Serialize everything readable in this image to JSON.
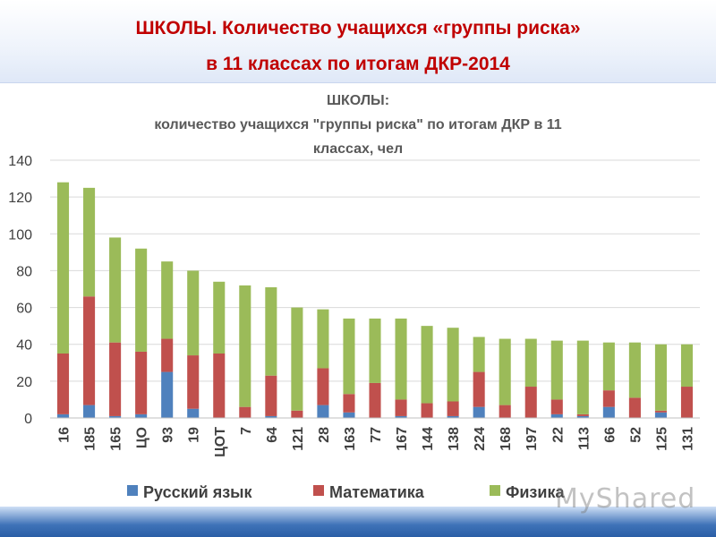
{
  "header": {
    "line1": "ШКОЛЫ. Количество учащихся «группы риска»",
    "line2": "в 11 классах по итогам ДКР-2014"
  },
  "watermark": "MyShared",
  "chart_data": {
    "type": "bar",
    "stacked": true,
    "title_lines": [
      "ШКОЛЫ:",
      "количество учащихся \"группы риска\" по итогам ДКР в 11",
      "классах, чел"
    ],
    "ylim": [
      0,
      140
    ],
    "yticks": [
      0,
      20,
      40,
      60,
      80,
      100,
      120,
      140
    ],
    "grid": true,
    "legend_position": "bottom",
    "categories": [
      "16",
      "185",
      "165",
      "ЦО",
      "93",
      "19",
      "ЦОТ",
      "7",
      "64",
      "121",
      "28",
      "163",
      "77",
      "167",
      "144",
      "138",
      "224",
      "168",
      "197",
      "22",
      "113",
      "66",
      "52",
      "125",
      "131"
    ],
    "series": [
      {
        "name": "Русский язык",
        "color": "#4f81bd",
        "values": [
          2,
          7,
          1,
          2,
          25,
          5,
          0,
          0,
          1,
          0,
          7,
          3,
          0,
          1,
          0,
          1,
          6,
          0,
          0,
          2,
          1,
          6,
          0,
          3,
          0
        ]
      },
      {
        "name": "Математика",
        "color": "#c0504d",
        "values": [
          33,
          59,
          40,
          34,
          18,
          29,
          35,
          6,
          22,
          4,
          20,
          10,
          19,
          9,
          8,
          8,
          19,
          7,
          17,
          8,
          1,
          9,
          11,
          1,
          17
        ]
      },
      {
        "name": "Физика",
        "color": "#9bbb59",
        "values": [
          93,
          59,
          57,
          56,
          42,
          46,
          39,
          66,
          48,
          56,
          32,
          41,
          35,
          44,
          42,
          40,
          19,
          36,
          26,
          32,
          40,
          26,
          30,
          36,
          23
        ]
      }
    ]
  }
}
